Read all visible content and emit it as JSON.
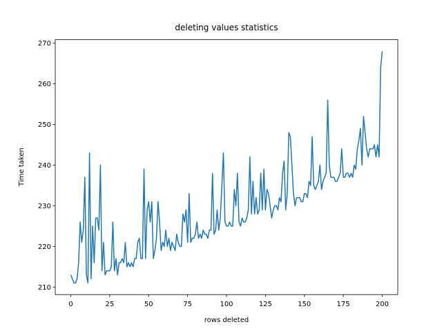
{
  "chart_data": {
    "type": "line",
    "title": "deleting values statistics",
    "x_label": "rows deleted",
    "y_label": "Time taken",
    "color": "#1f77b4",
    "x": [
      0,
      1,
      2,
      3,
      4,
      5,
      6,
      7,
      8,
      9,
      10,
      11,
      12,
      13,
      14,
      15,
      16,
      17,
      18,
      19,
      20,
      21,
      22,
      23,
      24,
      25,
      26,
      27,
      28,
      29,
      30,
      31,
      32,
      33,
      34,
      35,
      36,
      37,
      38,
      39,
      40,
      41,
      42,
      43,
      44,
      45,
      46,
      47,
      48,
      49,
      50,
      51,
      52,
      53,
      54,
      55,
      56,
      57,
      58,
      59,
      60,
      61,
      62,
      63,
      64,
      65,
      66,
      67,
      68,
      69,
      70,
      71,
      72,
      73,
      74,
      75,
      76,
      77,
      78,
      79,
      80,
      81,
      82,
      83,
      84,
      85,
      86,
      87,
      88,
      89,
      90,
      91,
      92,
      93,
      94,
      95,
      96,
      97,
      98,
      99,
      100,
      101,
      102,
      103,
      104,
      105,
      106,
      107,
      108,
      109,
      110,
      111,
      112,
      113,
      114,
      115,
      116,
      117,
      118,
      119,
      120,
      121,
      122,
      123,
      124,
      125,
      126,
      127,
      128,
      129,
      130,
      131,
      132,
      133,
      134,
      135,
      136,
      137,
      138,
      139,
      140,
      141,
      142,
      143,
      144,
      145,
      146,
      147,
      148,
      149,
      150,
      151,
      152,
      153,
      154,
      155,
      156,
      157,
      158,
      159,
      160,
      161,
      162,
      163,
      164,
      165,
      166,
      167,
      168,
      169,
      170,
      171,
      172,
      173,
      174,
      175,
      176,
      177,
      178,
      179,
      180,
      181,
      182,
      183,
      184,
      185,
      186,
      187,
      188,
      189,
      190,
      191,
      192,
      193,
      194,
      195,
      196,
      197,
      198,
      199,
      200
    ],
    "values": [
      213,
      212,
      211,
      211,
      212,
      216,
      226,
      221,
      224,
      237,
      213,
      211,
      243,
      212,
      225,
      216,
      227,
      227,
      224,
      240,
      214,
      221,
      213,
      214,
      214,
      214,
      215,
      226,
      214,
      217,
      213,
      216,
      216,
      217,
      216,
      221,
      215,
      216,
      215,
      216,
      215,
      217,
      217,
      221,
      222,
      217,
      217,
      239,
      217,
      229,
      231,
      226,
      231,
      217,
      219,
      222,
      231,
      226,
      219,
      221,
      220,
      224,
      220,
      222,
      219,
      221,
      220,
      219,
      223,
      221,
      220,
      220,
      228,
      226,
      229,
      221,
      233,
      221,
      222,
      222,
      223,
      226,
      222,
      223,
      222,
      224,
      223,
      223,
      222,
      224,
      224,
      238,
      223,
      224,
      229,
      224,
      227,
      235,
      243,
      226,
      225,
      225,
      226,
      225,
      225,
      234,
      230,
      238,
      226,
      225,
      227,
      226,
      226,
      227,
      229,
      242,
      228,
      236,
      228,
      232,
      228,
      229,
      238,
      229,
      239,
      229,
      234,
      233,
      230,
      227,
      229,
      230,
      230,
      229,
      232,
      231,
      238,
      241,
      229,
      233,
      248,
      247,
      240,
      233,
      230,
      232,
      232,
      232,
      231,
      231,
      233,
      233,
      232,
      236,
      235,
      247,
      235,
      234,
      235,
      236,
      240,
      234,
      236,
      237,
      238,
      256,
      240,
      237,
      237,
      237,
      236,
      236,
      237,
      238,
      244,
      237,
      237,
      238,
      238,
      237,
      238,
      237,
      240,
      239,
      244,
      246,
      249,
      240,
      252,
      248,
      244,
      242,
      244,
      244,
      244,
      245,
      242,
      245,
      242,
      264,
      268
    ],
    "xlim": [
      -10,
      210
    ],
    "ylim": [
      208.15,
      270.85
    ],
    "xticks": [
      0,
      25,
      50,
      75,
      100,
      125,
      150,
      175,
      200
    ],
    "yticks": [
      210,
      220,
      230,
      240,
      250,
      260,
      270
    ]
  }
}
